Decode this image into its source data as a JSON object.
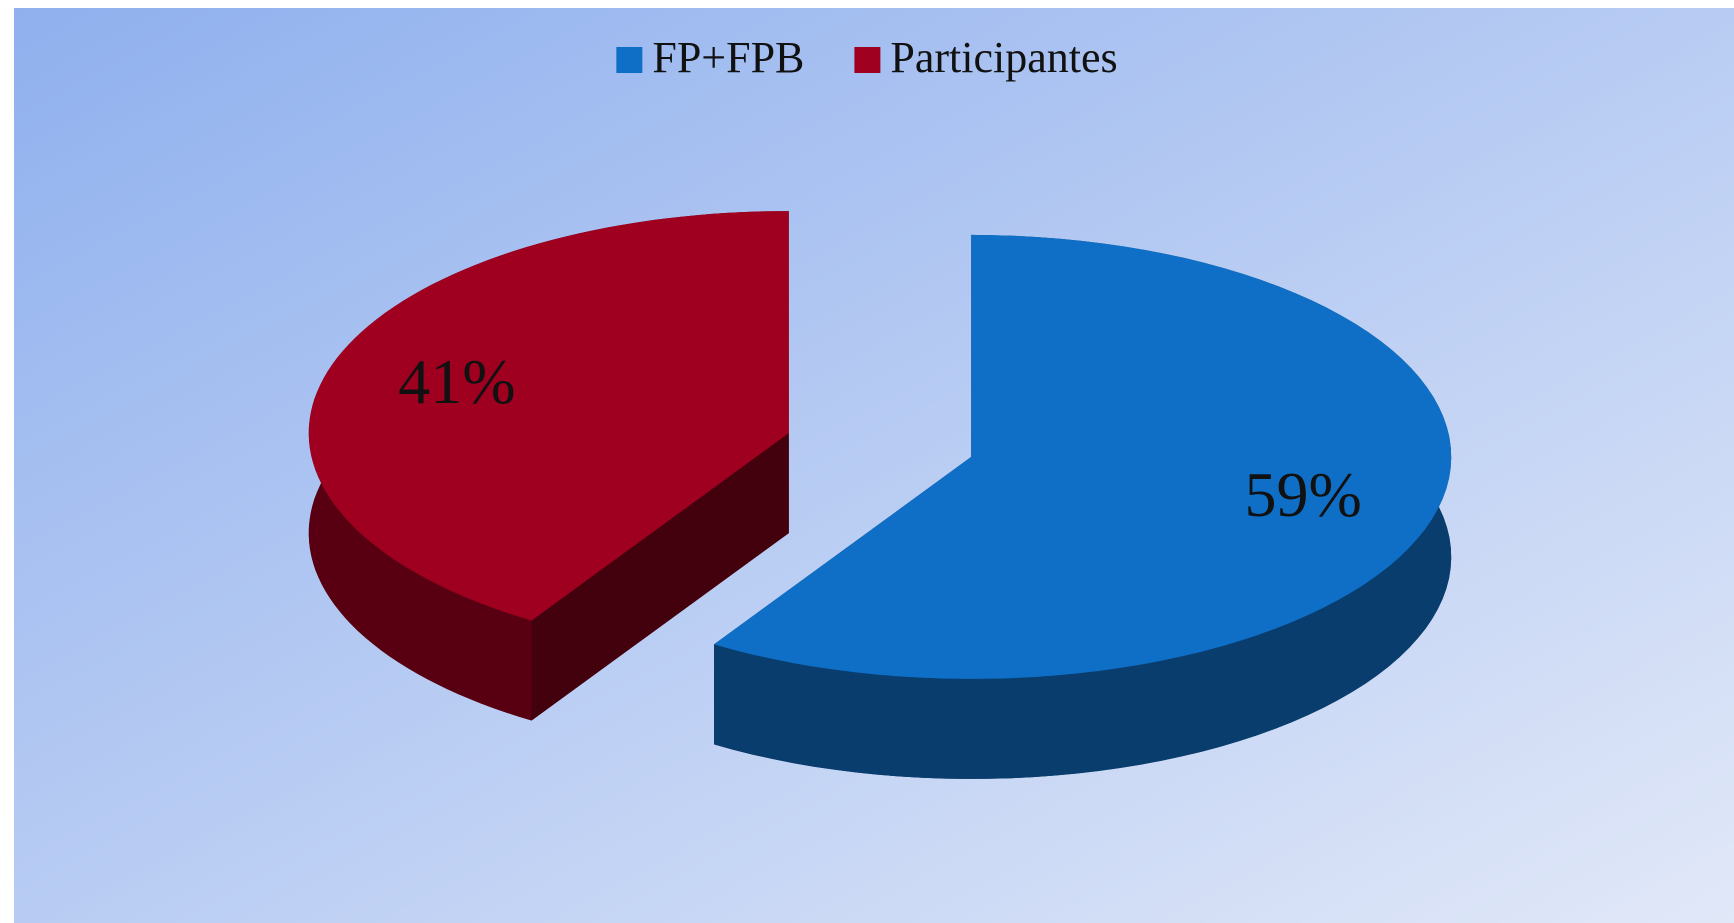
{
  "chart_data": {
    "type": "pie3d",
    "categories": [
      "FP+FPB",
      "Participantes"
    ],
    "values": [
      59,
      41
    ],
    "value_labels": [
      "59%",
      "41%"
    ],
    "colors": [
      "#0f6fc6",
      "#a00020"
    ],
    "legend": "top"
  }
}
